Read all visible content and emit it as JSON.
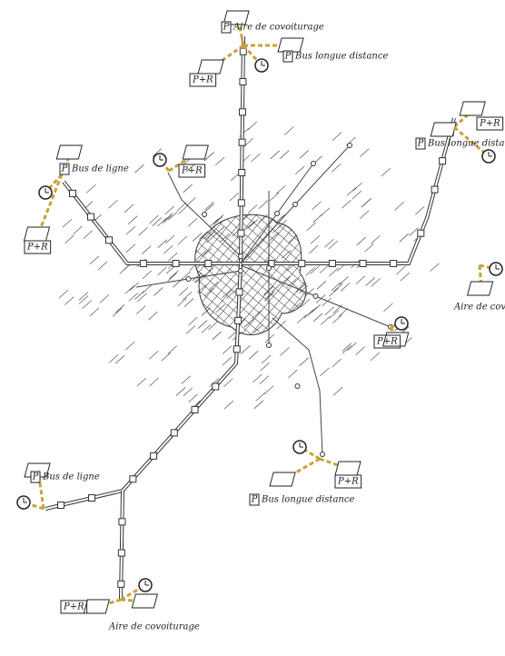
{
  "parking_icon": "P",
  "labels": [
    "Aire de covoiturage",
    "P+R",
    "Bus longue distance",
    "Bus de ligne",
    "P+R",
    "P+R",
    "P+R",
    "Bus longue distance",
    "Aire de covoiturage",
    "P+R",
    "Bus longue distance",
    "P+R",
    "Bus de ligne",
    "P+R",
    "Aire de covoiturage"
  ]
}
